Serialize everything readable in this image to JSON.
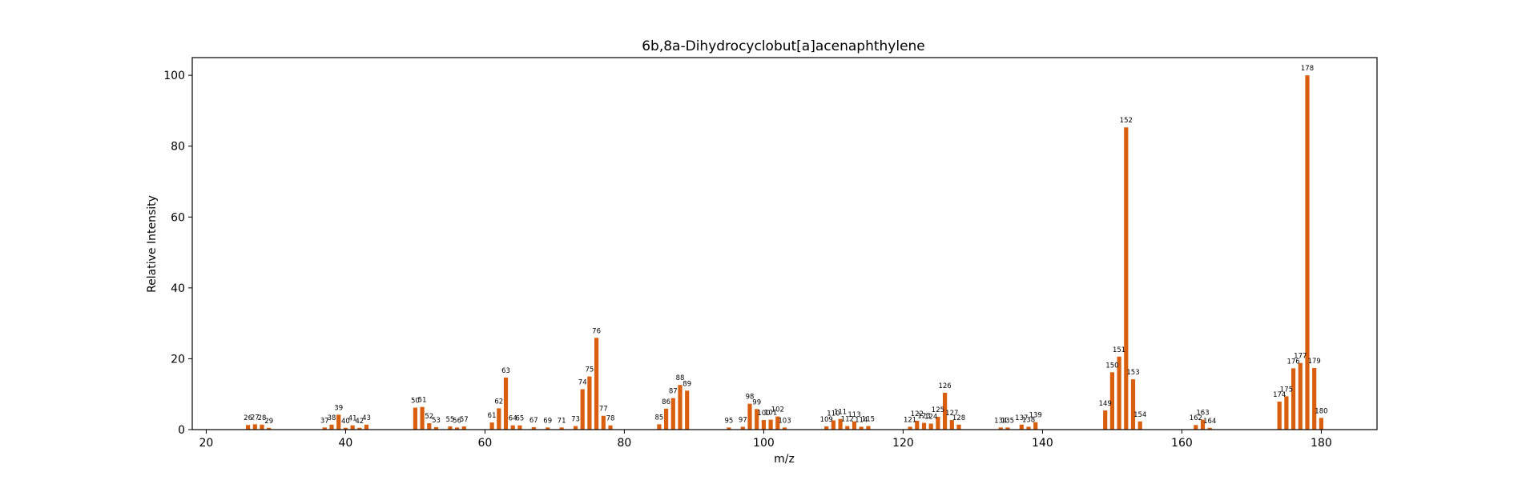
{
  "chart_data": {
    "type": "bar",
    "title": "6b,8a-Dihydrocyclobut[a]acenaphthylene",
    "xlabel": "m/z",
    "ylabel": "Relative Intensity",
    "xlim": [
      18,
      188
    ],
    "ylim": [
      0,
      105
    ],
    "xticks": [
      20,
      40,
      60,
      80,
      100,
      120,
      140,
      160,
      180
    ],
    "yticks": [
      0,
      20,
      40,
      60,
      80,
      100
    ],
    "grid": false,
    "bar_color": "#d95f0e",
    "peaks": [
      {
        "mz": 26,
        "intensity": 1.3
      },
      {
        "mz": 27,
        "intensity": 1.5
      },
      {
        "mz": 28,
        "intensity": 1.4
      },
      {
        "mz": 29,
        "intensity": 0.5
      },
      {
        "mz": 37,
        "intensity": 0.6
      },
      {
        "mz": 38,
        "intensity": 1.4
      },
      {
        "mz": 39,
        "intensity": 4.2
      },
      {
        "mz": 40,
        "intensity": 0.5
      },
      {
        "mz": 41,
        "intensity": 1.2
      },
      {
        "mz": 42,
        "intensity": 0.5
      },
      {
        "mz": 43,
        "intensity": 1.4
      },
      {
        "mz": 50,
        "intensity": 6.2
      },
      {
        "mz": 51,
        "intensity": 6.4
      },
      {
        "mz": 52,
        "intensity": 1.8
      },
      {
        "mz": 53,
        "intensity": 0.7
      },
      {
        "mz": 55,
        "intensity": 0.9
      },
      {
        "mz": 56,
        "intensity": 0.6
      },
      {
        "mz": 57,
        "intensity": 0.9
      },
      {
        "mz": 61,
        "intensity": 2.0
      },
      {
        "mz": 62,
        "intensity": 6.0
      },
      {
        "mz": 63,
        "intensity": 14.7
      },
      {
        "mz": 64,
        "intensity": 1.2
      },
      {
        "mz": 65,
        "intensity": 1.2
      },
      {
        "mz": 67,
        "intensity": 0.7
      },
      {
        "mz": 69,
        "intensity": 0.6
      },
      {
        "mz": 71,
        "intensity": 0.6
      },
      {
        "mz": 73,
        "intensity": 1.0
      },
      {
        "mz": 74,
        "intensity": 11.4
      },
      {
        "mz": 75,
        "intensity": 15.0
      },
      {
        "mz": 76,
        "intensity": 25.9
      },
      {
        "mz": 77,
        "intensity": 3.9
      },
      {
        "mz": 78,
        "intensity": 1.2
      },
      {
        "mz": 85,
        "intensity": 1.5
      },
      {
        "mz": 86,
        "intensity": 5.9
      },
      {
        "mz": 87,
        "intensity": 8.9
      },
      {
        "mz": 88,
        "intensity": 12.6
      },
      {
        "mz": 89,
        "intensity": 11.0
      },
      {
        "mz": 95,
        "intensity": 0.6
      },
      {
        "mz": 97,
        "intensity": 0.8
      },
      {
        "mz": 98,
        "intensity": 7.3
      },
      {
        "mz": 99,
        "intensity": 5.8
      },
      {
        "mz": 100,
        "intensity": 2.7
      },
      {
        "mz": 101,
        "intensity": 2.8
      },
      {
        "mz": 102,
        "intensity": 3.7
      },
      {
        "mz": 103,
        "intensity": 0.6
      },
      {
        "mz": 109,
        "intensity": 0.9
      },
      {
        "mz": 110,
        "intensity": 2.6
      },
      {
        "mz": 111,
        "intensity": 3.0
      },
      {
        "mz": 112,
        "intensity": 1.0
      },
      {
        "mz": 113,
        "intensity": 2.3
      },
      {
        "mz": 114,
        "intensity": 0.8
      },
      {
        "mz": 115,
        "intensity": 1.0
      },
      {
        "mz": 121,
        "intensity": 0.8
      },
      {
        "mz": 122,
        "intensity": 2.5
      },
      {
        "mz": 123,
        "intensity": 1.9
      },
      {
        "mz": 124,
        "intensity": 1.7
      },
      {
        "mz": 125,
        "intensity": 3.6
      },
      {
        "mz": 126,
        "intensity": 10.4
      },
      {
        "mz": 127,
        "intensity": 2.7
      },
      {
        "mz": 128,
        "intensity": 1.4
      },
      {
        "mz": 134,
        "intensity": 0.6
      },
      {
        "mz": 135,
        "intensity": 0.6
      },
      {
        "mz": 137,
        "intensity": 1.4
      },
      {
        "mz": 138,
        "intensity": 0.8
      },
      {
        "mz": 139,
        "intensity": 2.1
      },
      {
        "mz": 149,
        "intensity": 5.4
      },
      {
        "mz": 150,
        "intensity": 16.2
      },
      {
        "mz": 151,
        "intensity": 20.6
      },
      {
        "mz": 152,
        "intensity": 85.3
      },
      {
        "mz": 153,
        "intensity": 14.2
      },
      {
        "mz": 154,
        "intensity": 2.3
      },
      {
        "mz": 162,
        "intensity": 1.3
      },
      {
        "mz": 163,
        "intensity": 2.8
      },
      {
        "mz": 164,
        "intensity": 0.5
      },
      {
        "mz": 174,
        "intensity": 7.9
      },
      {
        "mz": 175,
        "intensity": 9.4
      },
      {
        "mz": 176,
        "intensity": 17.3
      },
      {
        "mz": 177,
        "intensity": 18.8
      },
      {
        "mz": 178,
        "intensity": 100.0
      },
      {
        "mz": 179,
        "intensity": 17.4
      },
      {
        "mz": 180,
        "intensity": 3.3
      }
    ]
  }
}
